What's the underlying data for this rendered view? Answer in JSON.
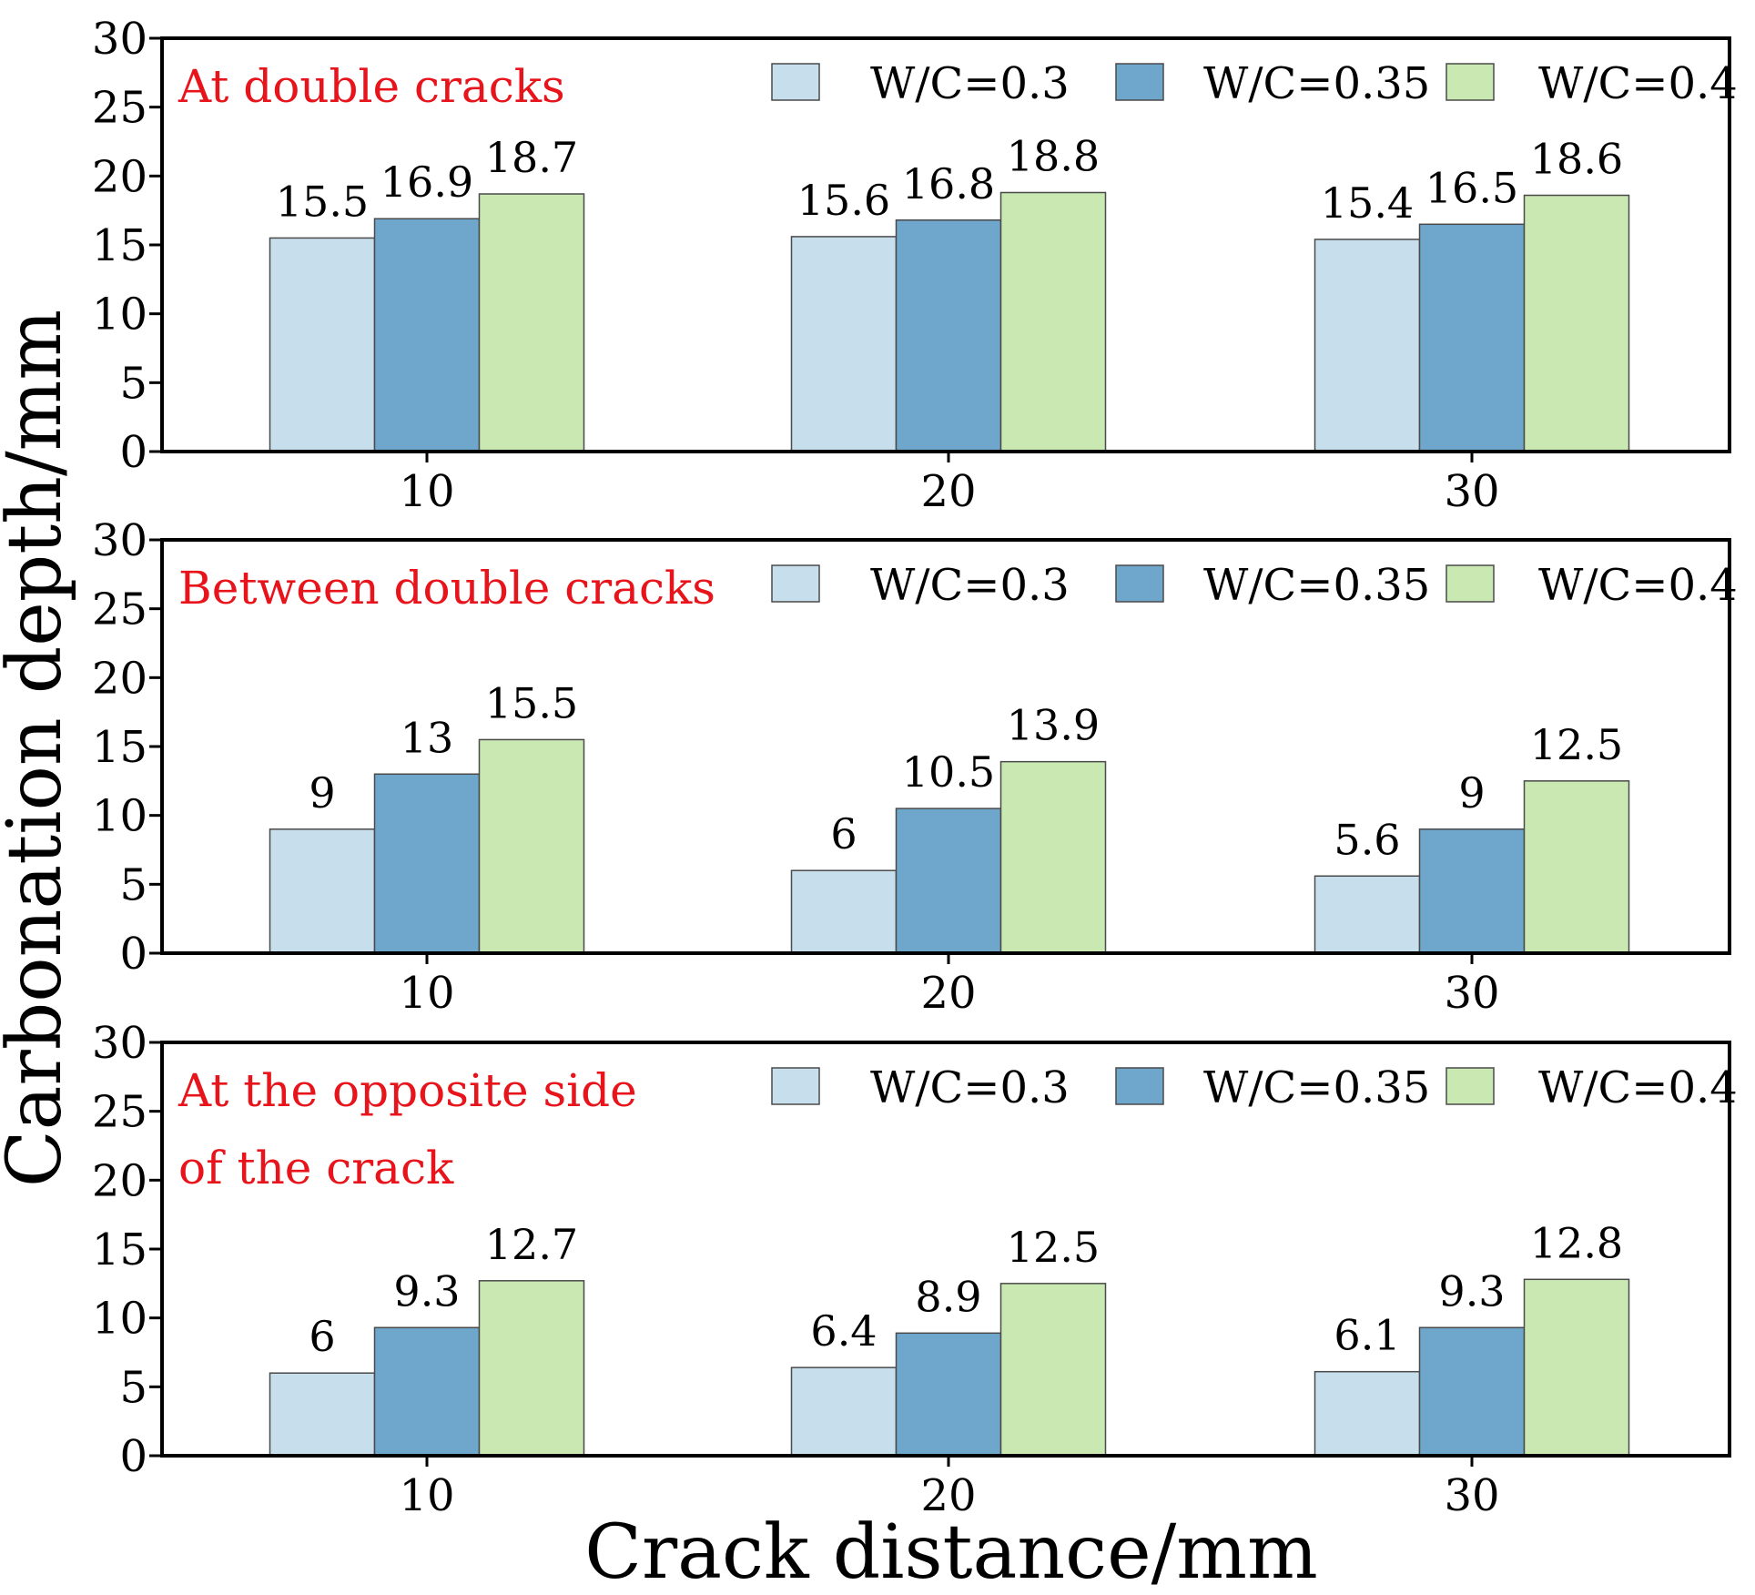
{
  "chart_data": [
    {
      "type": "bar",
      "title": "At double cracks",
      "categories": [
        "10",
        "20",
        "30"
      ],
      "series": [
        {
          "name": "W/C=0.3",
          "values": [
            15.5,
            15.6,
            15.4
          ]
        },
        {
          "name": "W/C=0.35",
          "values": [
            16.9,
            16.8,
            16.5
          ]
        },
        {
          "name": "W/C=0.4",
          "values": [
            18.7,
            18.8,
            18.6
          ]
        }
      ],
      "value_labels": [
        [
          "15.5",
          "15.6",
          "15.4"
        ],
        [
          "16.9",
          "16.8",
          "16.5"
        ],
        [
          "18.7",
          "18.8",
          "18.6"
        ]
      ],
      "yticks": [
        "0",
        "5",
        "10",
        "15",
        "20",
        "25",
        "30"
      ],
      "ylim": [
        0,
        30
      ]
    },
    {
      "type": "bar",
      "title": "Between double cracks",
      "categories": [
        "10",
        "20",
        "30"
      ],
      "series": [
        {
          "name": "W/C=0.3",
          "values": [
            9,
            6,
            5.6
          ]
        },
        {
          "name": "W/C=0.35",
          "values": [
            13,
            10.5,
            9
          ]
        },
        {
          "name": "W/C=0.4",
          "values": [
            15.5,
            13.9,
            12.5
          ]
        }
      ],
      "value_labels": [
        [
          "9",
          "6",
          "5.6"
        ],
        [
          "13",
          "10.5",
          "9"
        ],
        [
          "15.5",
          "13.9",
          "12.5"
        ]
      ],
      "yticks": [
        "0",
        "5",
        "10",
        "15",
        "20",
        "25",
        "30"
      ],
      "ylim": [
        0,
        30
      ]
    },
    {
      "type": "bar",
      "title": [
        "At the opposite side",
        "of the crack"
      ],
      "categories": [
        "10",
        "20",
        "30"
      ],
      "series": [
        {
          "name": "W/C=0.3",
          "values": [
            6,
            6.4,
            6.1
          ]
        },
        {
          "name": "W/C=0.35",
          "values": [
            9.3,
            8.9,
            9.3
          ]
        },
        {
          "name": "W/C=0.4",
          "values": [
            12.7,
            12.5,
            12.8
          ]
        }
      ],
      "value_labels": [
        [
          "6",
          "6.4",
          "6.1"
        ],
        [
          "9.3",
          "8.9",
          "9.3"
        ],
        [
          "12.7",
          "12.5",
          "12.8"
        ]
      ],
      "yticks": [
        "0",
        "5",
        "10",
        "15",
        "20",
        "25",
        "30"
      ],
      "ylim": [
        0,
        30
      ]
    }
  ],
  "ylabel": "Carbonation depth/mm",
  "xlabel": "Crack distance/mm",
  "colors": {
    "series": [
      "#c7deec",
      "#6fa6cc",
      "#cae8b2"
    ],
    "title": "#e8141c",
    "axis": "#000000"
  }
}
